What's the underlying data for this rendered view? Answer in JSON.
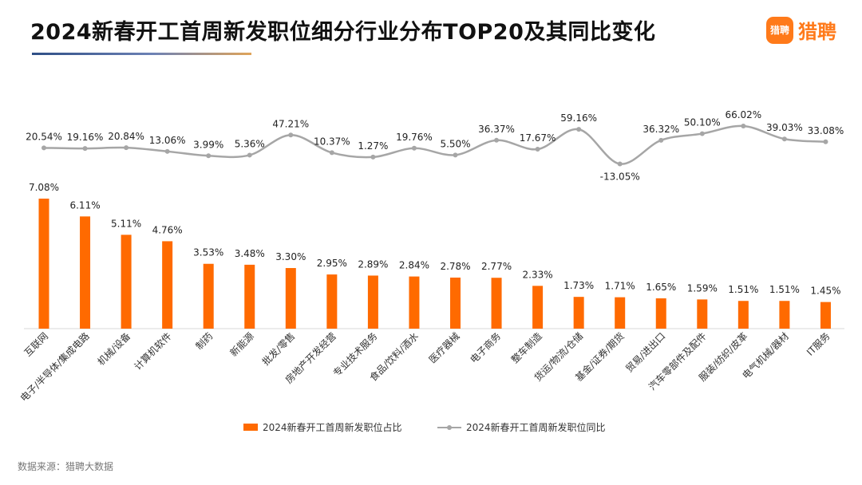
{
  "header": {
    "title": "2024新春开工首周新发职位细分行业分布TOP20及其同比变化"
  },
  "brand": {
    "logo_icon_text": "猎聘",
    "logo_text": "猎聘"
  },
  "footer": {
    "source": "数据来源：猎聘大数据"
  },
  "colors": {
    "bar": "#ff6a00",
    "line": "#a6a6a6",
    "brand": "#ff7a1a"
  },
  "legend": {
    "bar_label": "2024新春开工首周新发职位占比",
    "line_label": "2024新春开工首周新发职位同比"
  },
  "chart_data": {
    "type": "bar",
    "categories": [
      "互联网",
      "电子/半导体/集成电路",
      "机械/设备",
      "计算机软件",
      "制药",
      "新能源",
      "批发/零售",
      "房地产开发经营",
      "专业技术服务",
      "食品/饮料/酒水",
      "医疗器械",
      "电子商务",
      "整车制造",
      "货运/物流/仓储",
      "基金/证券/期货",
      "贸易/进出口",
      "汽车零部件及配件",
      "服装/纺织/皮革",
      "电气机械/器材",
      "IT服务"
    ],
    "series": [
      {
        "name": "2024新春开工首周新发职位占比",
        "type": "bar",
        "values": [
          7.08,
          6.11,
          5.11,
          4.76,
          3.53,
          3.48,
          3.3,
          2.95,
          2.89,
          2.84,
          2.78,
          2.77,
          2.33,
          1.73,
          1.71,
          1.65,
          1.59,
          1.51,
          1.51,
          1.45
        ],
        "labels": [
          "7.08%",
          "6.11%",
          "5.11%",
          "4.76%",
          "3.53%",
          "3.48%",
          "3.30%",
          "2.95%",
          "2.89%",
          "2.84%",
          "2.78%",
          "2.77%",
          "2.33%",
          "1.73%",
          "1.71%",
          "1.65%",
          "1.59%",
          "1.51%",
          "1.51%",
          "1.45%"
        ]
      },
      {
        "name": "2024新春开工首周新发职位同比",
        "type": "line",
        "values": [
          20.54,
          19.16,
          20.84,
          13.06,
          3.99,
          5.36,
          47.21,
          10.37,
          1.27,
          19.76,
          5.5,
          36.37,
          17.67,
          59.16,
          -13.05,
          36.32,
          50.1,
          66.02,
          39.03,
          33.08
        ],
        "labels": [
          "20.54%",
          "19.16%",
          "20.84%",
          "13.06%",
          "3.99%",
          "5.36%",
          "47.21%",
          "10.37%",
          "1.27%",
          "19.76%",
          "5.50%",
          "36.37%",
          "17.67%",
          "59.16%",
          "-13.05%",
          "36.32%",
          "50.10%",
          "66.02%",
          "39.03%",
          "33.08%"
        ]
      }
    ],
    "grid": false,
    "legend_position": "bottom"
  }
}
